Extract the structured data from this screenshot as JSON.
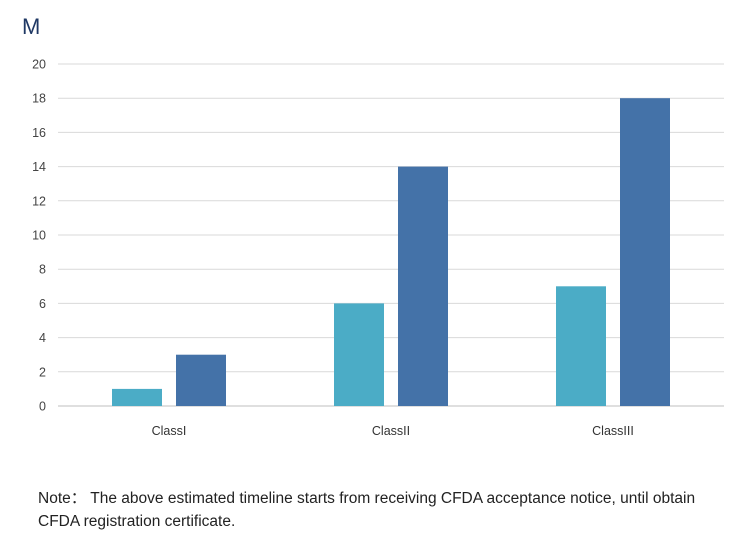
{
  "chart_data": {
    "type": "bar",
    "title": "",
    "ylabel": "M",
    "xlabel": "",
    "categories": [
      "ClassI",
      "ClassII",
      "ClassIII"
    ],
    "series": [
      {
        "values": [
          1,
          6,
          7
        ],
        "color": "#4bacc6"
      },
      {
        "values": [
          3,
          14,
          18
        ],
        "color": "#4472a8"
      }
    ],
    "ylim": [
      0,
      20
    ],
    "yticks": [
      0,
      2,
      4,
      6,
      8,
      10,
      12,
      14,
      16,
      18,
      20
    ],
    "grid": true,
    "legend": "none"
  },
  "note": "Note： The above estimated timeline starts from receiving CFDA acceptance notice, until obtain CFDA registration certificate."
}
